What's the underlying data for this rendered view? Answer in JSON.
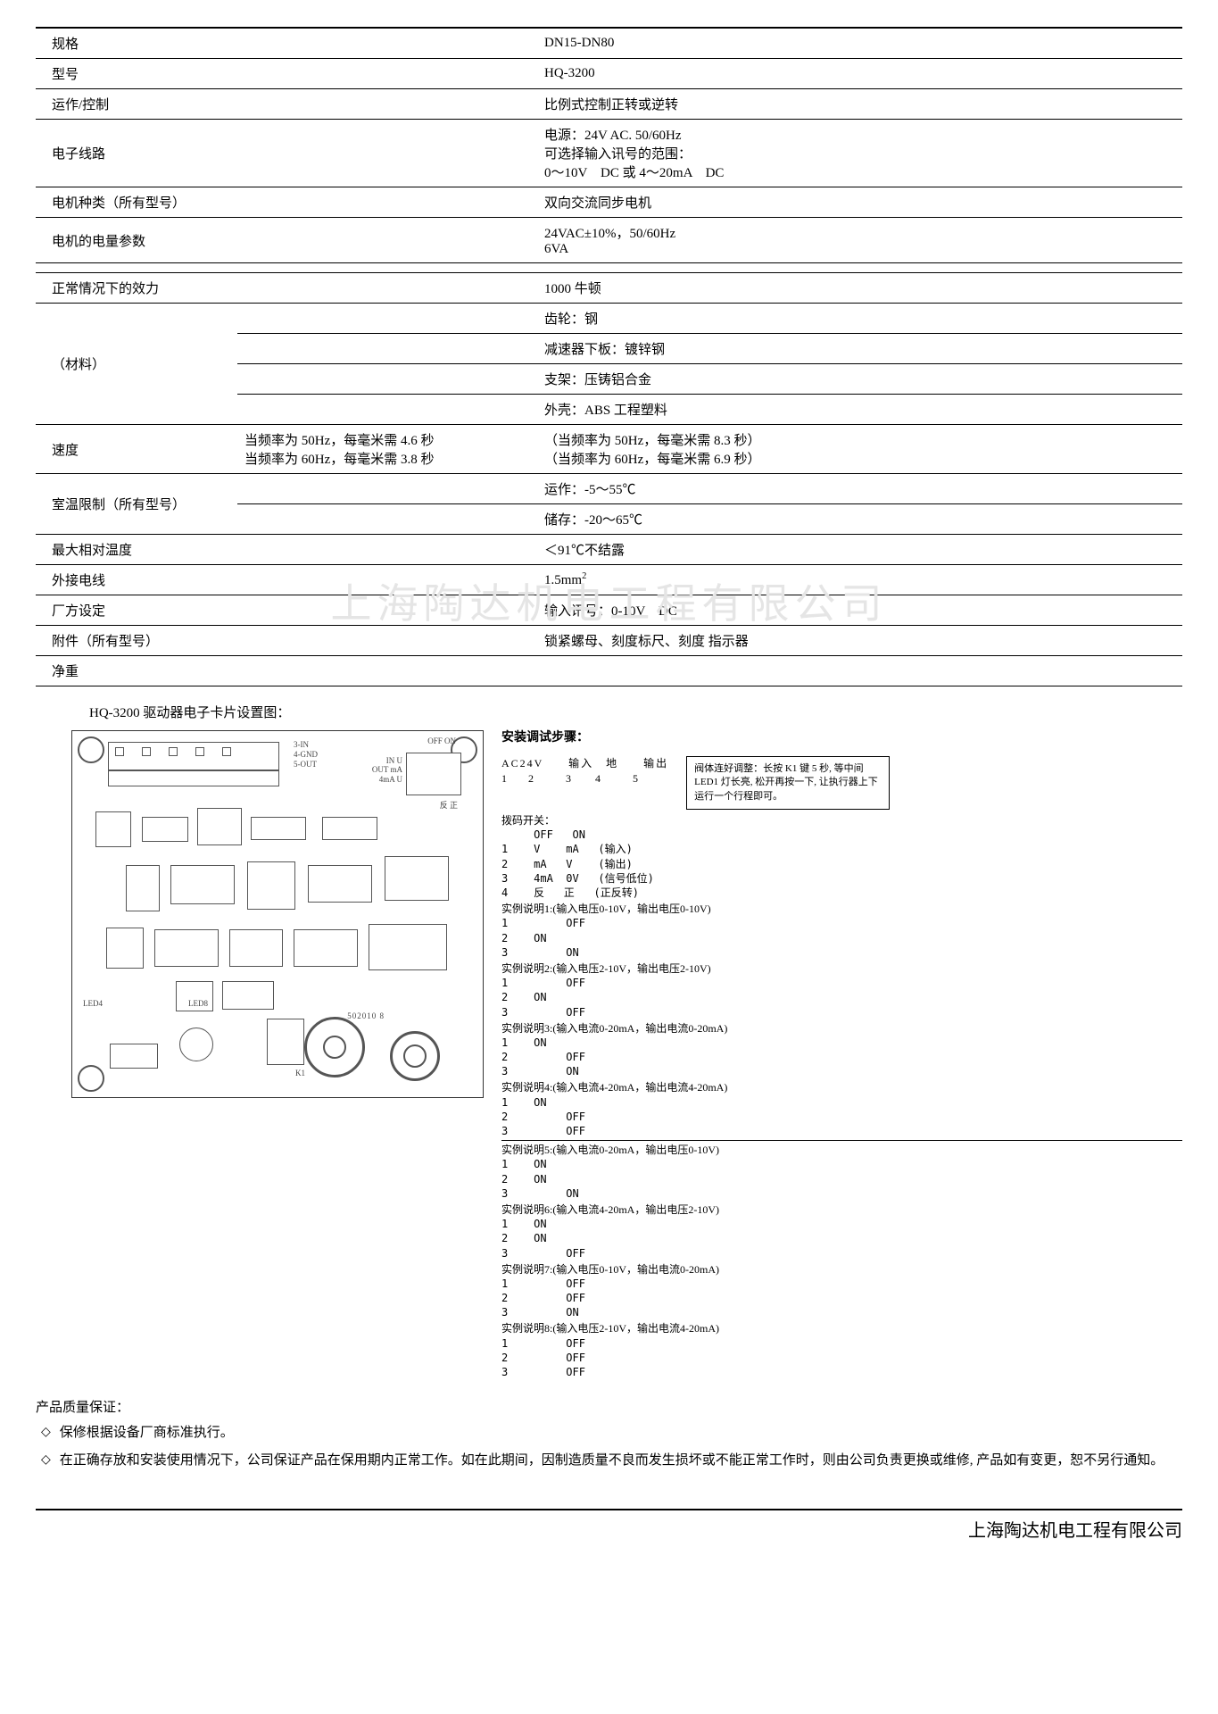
{
  "spec": {
    "rows": [
      {
        "label": "规格",
        "mid": "",
        "val": "DN15-DN80",
        "thickTop": true
      },
      {
        "label": "型号",
        "mid": "",
        "val": "HQ-3200"
      },
      {
        "label": "运作/控制",
        "mid": "",
        "val": "比例式控制正转或逆转"
      },
      {
        "label": "电子线路",
        "mid": "",
        "val": "电源：24V AC. 50/60Hz\n可选择输入讯号的范围：\n0～10V　DC 或 4～20mA　DC",
        "rowspan": 1
      },
      {
        "label": "电机种类（所有型号）",
        "mid": "",
        "val": "双向交流同步电机"
      },
      {
        "label": "电机的电量参数",
        "mid": "",
        "val": "24VAC±10%，50/60Hz\n6VA"
      },
      {
        "gap": true
      },
      {
        "label": "正常情况下的效力",
        "mid": "",
        "val": "1000 牛顿"
      },
      {
        "label": "（材料）",
        "mid": "",
        "val": "齿轮：钢",
        "labelRowspan": 4
      },
      {
        "label": "",
        "mid": "",
        "val": "减速器下板：镀锌钢",
        "contLabel": true
      },
      {
        "label": "",
        "mid": "",
        "val": "支架：压铸铝合金",
        "contLabel": true
      },
      {
        "label": "",
        "mid": "",
        "val": "外壳：ABS 工程塑料",
        "contLabel": true
      },
      {
        "label": "速度",
        "mid": "当频率为 50Hz，每毫米需 4.6 秒\n当频率为 60Hz，每毫米需 3.8 秒",
        "val": "（当频率为 50Hz，每毫米需 8.3 秒）\n（当频率为 60Hz，每毫米需 6.9 秒）"
      },
      {
        "label": "室温限制（所有型号）",
        "mid": "",
        "val": "运作：-5～55℃",
        "labelRowspan": 2
      },
      {
        "label": "",
        "mid": "",
        "val": "储存：-20～65℃",
        "contLabel": true
      },
      {
        "label": "最大相对温度",
        "mid": "",
        "val": "＜91℃不结露"
      },
      {
        "label": "外接电线",
        "mid": "",
        "val": "1.5mm²"
      },
      {
        "label": "厂方设定",
        "mid": "",
        "val": "输入讯号：0-10V　DC"
      },
      {
        "label": "附件（所有型号）",
        "mid": "",
        "val": "锁紧螺母、刻度标尺、刻度 指示器"
      },
      {
        "label": "净重",
        "mid": "",
        "val": ""
      }
    ]
  },
  "section_title": "HQ-3200 驱动器电子卡片设置图：",
  "pcb_labels": {
    "top_right": [
      "OFF ON",
      "3-IN",
      "4-GND",
      "5-OUT"
    ],
    "right": [
      "IN  U",
      "OUT mA",
      "4mA  U",
      "反 正"
    ],
    "led4": "LED4",
    "led8": "LED8",
    "k1": "K1",
    "part_no": "502010 8"
  },
  "steps": {
    "title": "安装调试步骤：",
    "terminal_header": "AC24V　　输入　地　　输出",
    "terminal_nums": "1　　2　　　3　　 4　　　5",
    "note_box": "阀体连好调整：长按 K1 键 5 秒, 等中间 LED1 灯长亮, 松开再按一下, 让执行器上下运行一个行程即可。",
    "dip_header": "拨码开关：",
    "dip_cols": "     OFF   ON",
    "dip_rows": [
      "1    V    mA   (输入)",
      "2    mA   V    (输出)",
      "3    4mA  0V   (信号低位)",
      "4    反   正   (正反转)"
    ],
    "examples": [
      {
        "t": "实例说明1:(输入电压0-10V，输出电压0-10V)",
        "r": [
          "1         OFF",
          "2    ON",
          "3         ON"
        ]
      },
      {
        "t": "实例说明2:(输入电压2-10V，输出电压2-10V)",
        "r": [
          "1         OFF",
          "2    ON",
          "3         OFF"
        ]
      },
      {
        "t": "实例说明3:(输入电流0-20mA，输出电流0-20mA)",
        "r": [
          "1    ON",
          "2         OFF",
          "3         ON"
        ]
      },
      {
        "t": "实例说明4:(输入电流4-20mA，输出电流4-20mA)",
        "r": [
          "1    ON",
          "2         OFF",
          "3         OFF"
        ],
        "hr": true
      },
      {
        "t": "实例说明5:(输入电流0-20mA，输出电压0-10V)",
        "r": [
          "1    ON",
          "2    ON",
          "3         ON"
        ]
      },
      {
        "t": "实例说明6:(输入电流4-20mA，输出电压2-10V)",
        "r": [
          "1    ON",
          "2    ON",
          "3         OFF"
        ]
      },
      {
        "t": "实例说明7:(输入电压0-10V，输出电流0-20mA)",
        "r": [
          "1         OFF",
          "2         OFF",
          "3         ON"
        ]
      },
      {
        "t": "实例说明8:(输入电压2-10V，输出电流4-20mA)",
        "r": [
          "1         OFF",
          "2         OFF",
          "3         OFF"
        ]
      }
    ]
  },
  "quality": {
    "header": "产品质量保证：",
    "items": [
      "保修根据设备厂商标准执行。",
      "在正确存放和安装使用情况下，公司保证产品在保用期内正常工作。如在此期间，因制造质量不良而发生损坏或不能正常工作时，则由公司负责更换或维修, 产品如有变更，恕不另行通知。"
    ]
  },
  "watermark": "上海陶达机电工程有限公司",
  "footer": "上海陶达机电工程有限公司",
  "colors": {
    "border": "#000000",
    "text": "#000000",
    "bg": "#ffffff",
    "wm": "#e5e5e5"
  }
}
